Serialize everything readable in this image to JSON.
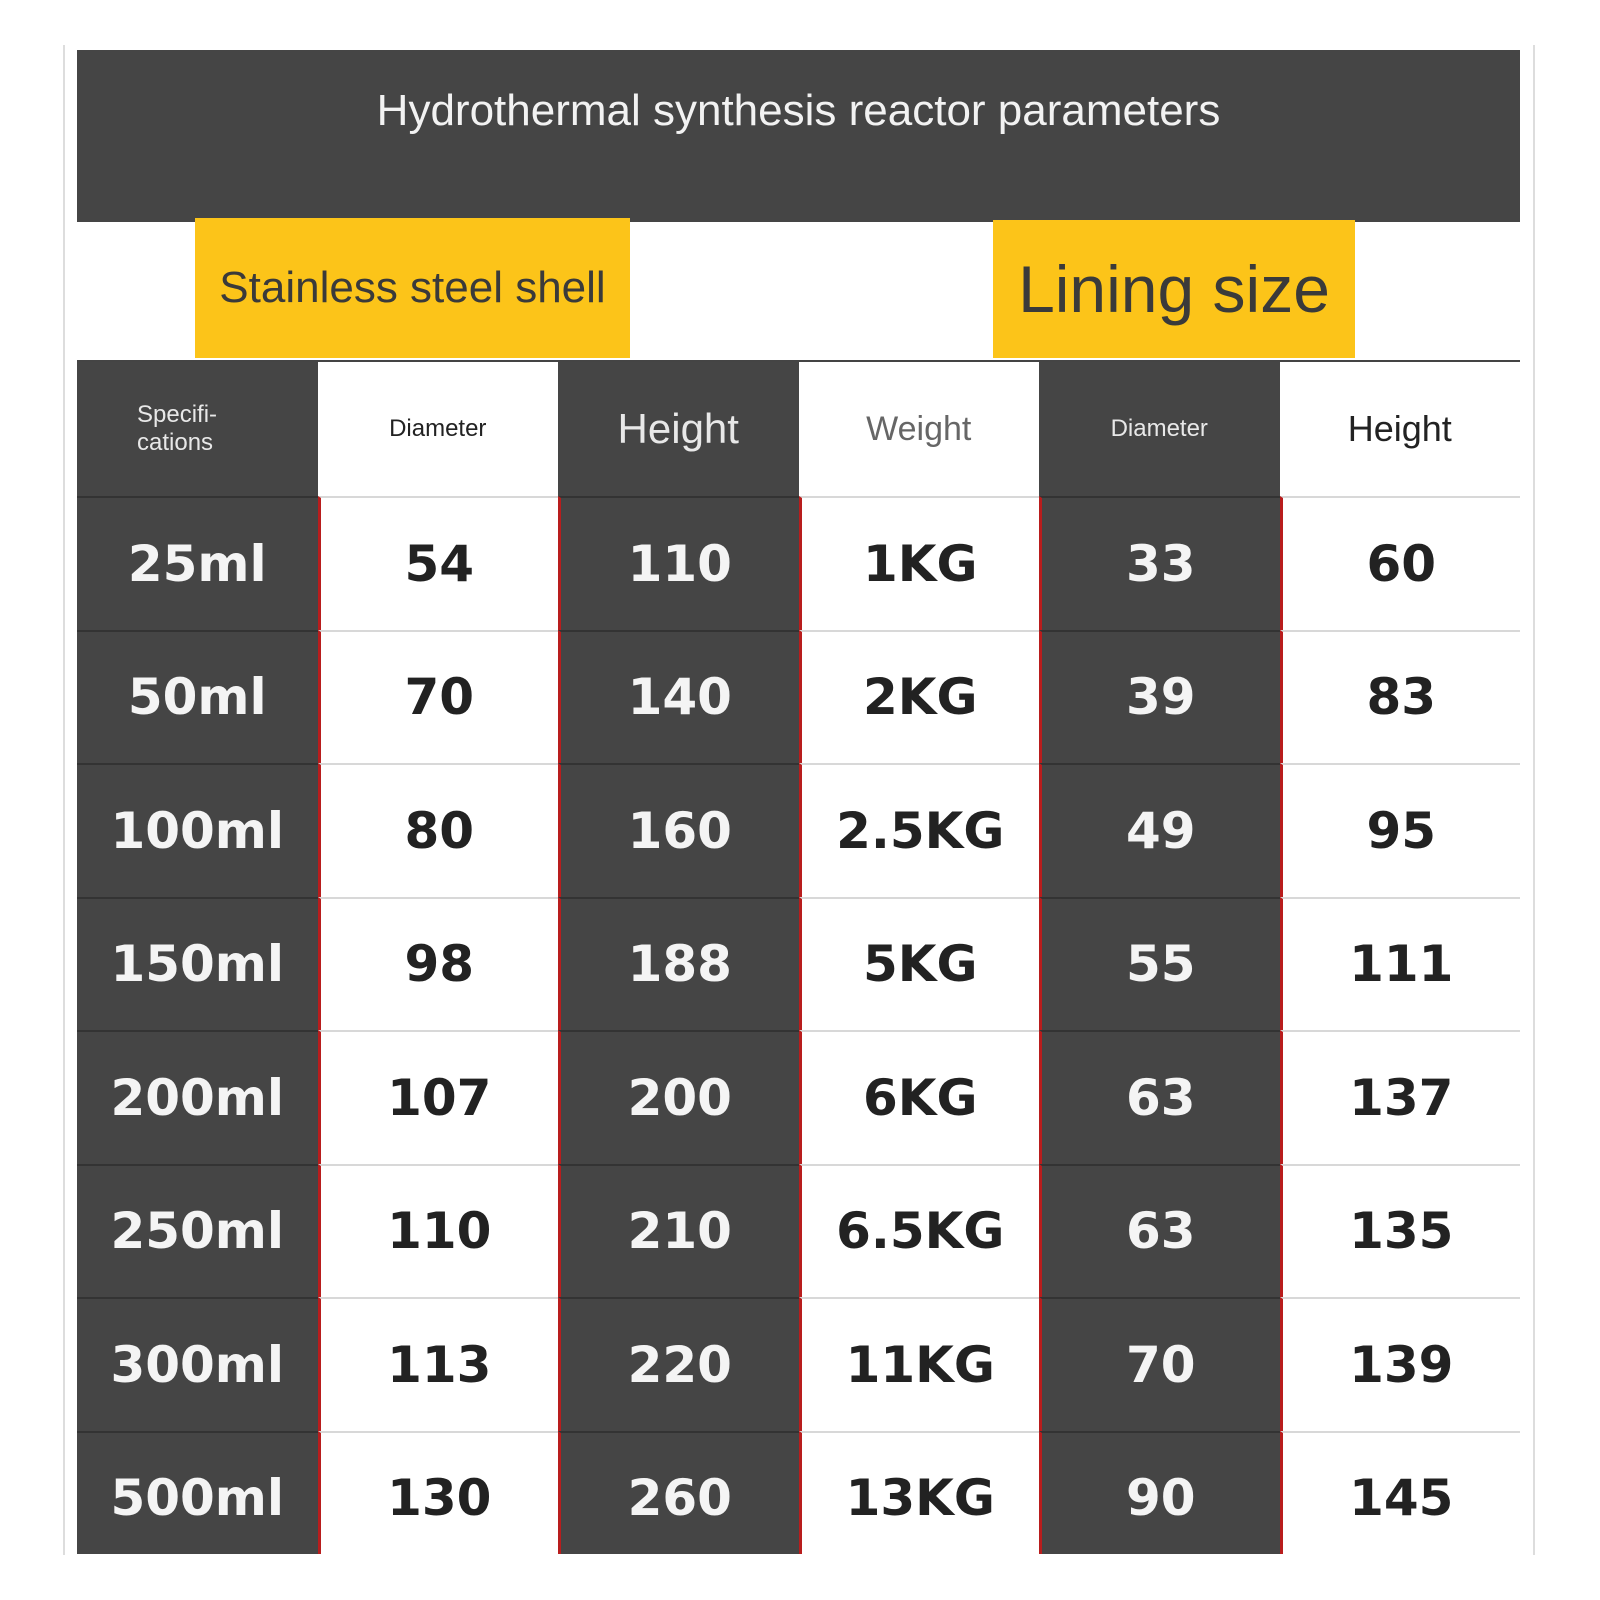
{
  "header": {
    "title": "Hydrothermal synthesis reactor parameters"
  },
  "labels": {
    "shell": "Stainless steel shell",
    "lining": "Lining size"
  },
  "table": {
    "headers": [
      "Specifi-\ncations",
      "Diameter",
      "Height",
      "Weight",
      "Diameter",
      "Height"
    ],
    "rows": [
      [
        "25ml",
        "54",
        "110",
        "1KG",
        "33",
        "60"
      ],
      [
        "50ml",
        "70",
        "140",
        "2KG",
        "39",
        "83"
      ],
      [
        "100ml",
        "80",
        "160",
        "2.5KG",
        "49",
        "95"
      ],
      [
        "150ml",
        "98",
        "188",
        "5KG",
        "55",
        "111"
      ],
      [
        "200ml",
        "107",
        "200",
        "6KG",
        "63",
        "137"
      ],
      [
        "250ml",
        "110",
        "210",
        "6.5KG",
        "63",
        "135"
      ],
      [
        "300ml",
        "113",
        "220",
        "11KG",
        "70",
        "139"
      ],
      [
        "500ml",
        "130",
        "260",
        "13KG",
        "90",
        "145"
      ]
    ]
  }
}
